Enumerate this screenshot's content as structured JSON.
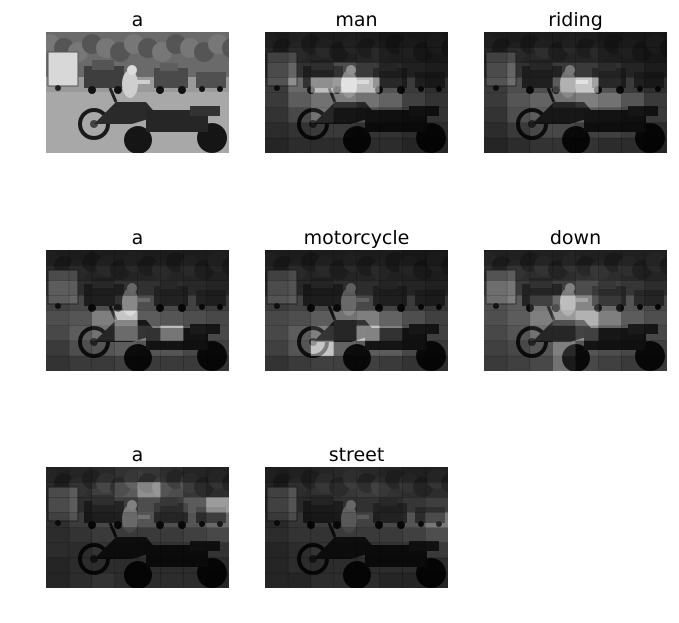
{
  "panels": [
    {
      "word": "a",
      "attention": [
        0,
        0,
        0,
        0,
        0,
        0,
        0,
        0,
        0,
        0,
        0,
        0,
        0,
        0,
        0,
        0,
        0,
        0,
        0,
        0,
        0,
        0,
        0,
        0,
        0,
        0,
        0,
        0,
        0,
        0,
        0,
        0,
        0,
        0,
        0,
        0,
        0,
        0,
        0,
        0,
        0,
        0,
        0,
        0,
        0,
        0,
        0,
        0,
        0,
        0,
        0,
        0,
        0,
        0,
        0,
        0,
        0,
        0,
        0,
        0,
        0,
        0,
        0,
        0
      ],
      "base": true
    },
    {
      "word": "man",
      "attention": [
        0.1,
        0.15,
        0.1,
        0.1,
        0.1,
        0.05,
        0.05,
        0.05,
        0.15,
        0.2,
        0.2,
        0.15,
        0.2,
        0.1,
        0.1,
        0.05,
        0.2,
        0.35,
        0.45,
        0.55,
        0.45,
        0.25,
        0.15,
        0.1,
        0.25,
        0.55,
        0.9,
        0.95,
        0.9,
        0.45,
        0.25,
        0.15,
        0.2,
        0.45,
        0.55,
        0.6,
        0.55,
        0.5,
        0.25,
        0.15,
        0.15,
        0.3,
        0.55,
        0.4,
        0.35,
        0.3,
        0.2,
        0.15,
        0.1,
        0.15,
        0.2,
        0.2,
        0.15,
        0.15,
        0.1,
        0.1,
        0.05,
        0.1,
        0.1,
        0.1,
        0.1,
        0.1,
        0.05,
        0.05
      ]
    },
    {
      "word": "riding",
      "attention": [
        0.1,
        0.1,
        0.1,
        0.1,
        0.1,
        0.05,
        0.05,
        0.05,
        0.15,
        0.2,
        0.25,
        0.2,
        0.2,
        0.1,
        0.1,
        0.05,
        0.2,
        0.35,
        0.35,
        0.45,
        0.45,
        0.35,
        0.2,
        0.1,
        0.25,
        0.4,
        0.4,
        0.7,
        0.95,
        0.45,
        0.25,
        0.15,
        0.2,
        0.4,
        0.5,
        0.55,
        0.6,
        0.55,
        0.4,
        0.2,
        0.15,
        0.35,
        0.45,
        0.45,
        0.45,
        0.4,
        0.3,
        0.2,
        0.1,
        0.2,
        0.3,
        0.3,
        0.25,
        0.25,
        0.2,
        0.1,
        0.05,
        0.1,
        0.15,
        0.15,
        0.15,
        0.1,
        0.1,
        0.05
      ]
    },
    {
      "word": "a",
      "attention": [
        0.1,
        0.1,
        0.1,
        0.1,
        0.1,
        0.1,
        0.1,
        0.1,
        0.2,
        0.2,
        0.2,
        0.2,
        0.2,
        0.2,
        0.2,
        0.15,
        0.3,
        0.3,
        0.35,
        0.35,
        0.35,
        0.3,
        0.25,
        0.2,
        0.3,
        0.35,
        0.4,
        0.55,
        0.4,
        0.35,
        0.3,
        0.25,
        0.35,
        0.4,
        0.6,
        0.9,
        0.45,
        0.4,
        0.35,
        0.3,
        0.3,
        0.45,
        0.55,
        0.8,
        0.6,
        0.85,
        0.4,
        0.3,
        0.2,
        0.35,
        0.4,
        0.45,
        0.4,
        0.4,
        0.3,
        0.25,
        0.15,
        0.2,
        0.2,
        0.25,
        0.2,
        0.2,
        0.2,
        0.15
      ]
    },
    {
      "word": "motorcycle",
      "attention": [
        0.1,
        0.1,
        0.1,
        0.1,
        0.1,
        0.1,
        0.05,
        0.05,
        0.15,
        0.2,
        0.2,
        0.2,
        0.2,
        0.15,
        0.15,
        0.1,
        0.2,
        0.25,
        0.3,
        0.3,
        0.3,
        0.25,
        0.2,
        0.15,
        0.25,
        0.3,
        0.35,
        0.4,
        0.35,
        0.3,
        0.25,
        0.2,
        0.3,
        0.35,
        0.45,
        0.55,
        0.6,
        0.5,
        0.35,
        0.25,
        0.3,
        0.45,
        0.6,
        0.55,
        0.9,
        0.6,
        0.35,
        0.25,
        0.25,
        0.4,
        0.9,
        0.5,
        0.45,
        0.45,
        0.3,
        0.2,
        0.15,
        0.2,
        0.25,
        0.25,
        0.25,
        0.2,
        0.15,
        0.1
      ]
    },
    {
      "word": "down",
      "attention": [
        0.15,
        0.15,
        0.15,
        0.15,
        0.15,
        0.15,
        0.15,
        0.15,
        0.25,
        0.3,
        0.3,
        0.3,
        0.35,
        0.3,
        0.25,
        0.2,
        0.4,
        0.45,
        0.5,
        0.5,
        0.55,
        0.5,
        0.4,
        0.3,
        0.4,
        0.5,
        0.6,
        0.75,
        0.65,
        0.55,
        0.45,
        0.35,
        0.35,
        0.45,
        0.6,
        0.7,
        0.8,
        0.6,
        0.45,
        0.35,
        0.3,
        0.4,
        0.55,
        0.55,
        0.65,
        0.5,
        0.4,
        0.3,
        0.25,
        0.3,
        0.4,
        0.6,
        0.4,
        0.35,
        0.3,
        0.25,
        0.2,
        0.25,
        0.3,
        0.55,
        0.3,
        0.25,
        0.2,
        0.2
      ]
    },
    {
      "word": "a",
      "attention": [
        0.15,
        0.2,
        0.25,
        0.35,
        0.4,
        0.3,
        0.2,
        0.15,
        0.2,
        0.3,
        0.5,
        0.6,
        0.8,
        0.55,
        0.4,
        0.3,
        0.2,
        0.3,
        0.45,
        0.5,
        0.55,
        0.5,
        0.6,
        0.85,
        0.15,
        0.25,
        0.35,
        0.4,
        0.45,
        0.4,
        0.45,
        0.55,
        0.1,
        0.15,
        0.2,
        0.2,
        0.2,
        0.2,
        0.25,
        0.3,
        0.1,
        0.1,
        0.15,
        0.15,
        0.15,
        0.15,
        0.15,
        0.15,
        0.05,
        0.1,
        0.1,
        0.1,
        0.1,
        0.1,
        0.1,
        0.1,
        0.05,
        0.1,
        0.15,
        0.1,
        0.1,
        0.1,
        0.1,
        0.05
      ]
    },
    {
      "word": "street",
      "attention": [
        0.1,
        0.15,
        0.2,
        0.25,
        0.25,
        0.2,
        0.15,
        0.15,
        0.15,
        0.25,
        0.35,
        0.4,
        0.45,
        0.35,
        0.3,
        0.3,
        0.15,
        0.25,
        0.3,
        0.35,
        0.35,
        0.3,
        0.4,
        0.5,
        0.1,
        0.2,
        0.25,
        0.3,
        0.3,
        0.35,
        0.45,
        0.6,
        0.1,
        0.15,
        0.15,
        0.2,
        0.2,
        0.2,
        0.25,
        0.35,
        0.05,
        0.1,
        0.15,
        0.15,
        0.15,
        0.15,
        0.15,
        0.2,
        0.05,
        0.1,
        0.1,
        0.1,
        0.1,
        0.1,
        0.1,
        0.1,
        0.05,
        0.05,
        0.1,
        0.1,
        0.1,
        0.05,
        0.05,
        0.05
      ]
    }
  ]
}
